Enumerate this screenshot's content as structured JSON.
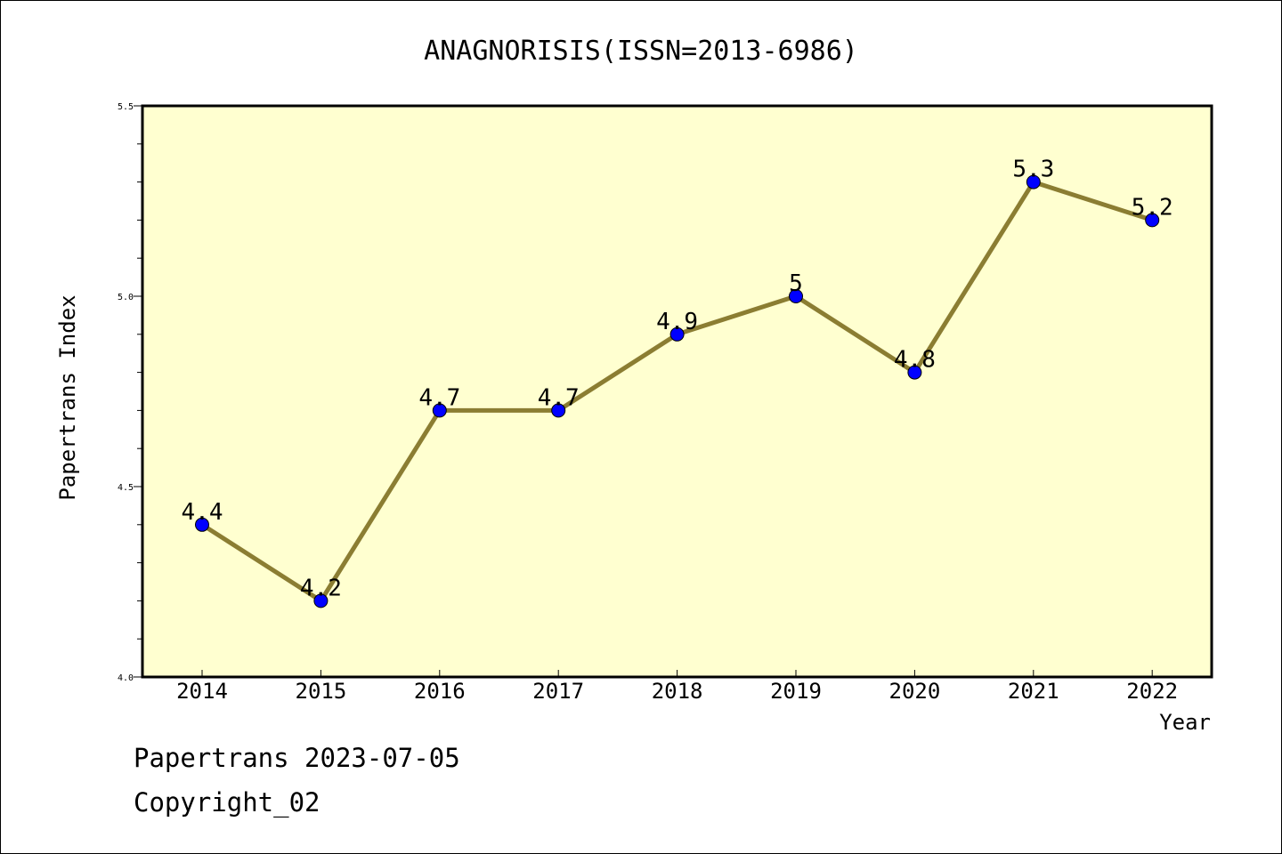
{
  "chart_data": {
    "type": "line",
    "title": "ANAGNORISIS(ISSN=2013-6986)",
    "xlabel": "Year",
    "ylabel": "Papertrans Index",
    "categories": [
      "2014",
      "2015",
      "2016",
      "2017",
      "2018",
      "2019",
      "2020",
      "2021",
      "2022"
    ],
    "series": [
      {
        "values": [
          4.4,
          4.2,
          4.7,
          4.7,
          4.9,
          5.0,
          4.8,
          5.3,
          5.2
        ],
        "labels": [
          "4.4",
          "4.2",
          "4.7",
          "4.7",
          "4.9",
          "5",
          "4.8",
          "5.3",
          "5.2"
        ],
        "line_color": "#8b7d32",
        "marker_color": "#0000ff"
      }
    ],
    "ylim": [
      4.0,
      5.5
    ],
    "yticks": [
      "4.0",
      "4.5",
      "5.0",
      "5.5"
    ],
    "plot_background": "#ffffd0",
    "grid": false
  },
  "footer": {
    "line1": "Papertrans 2023-07-05",
    "line2": "Copyright_02"
  }
}
